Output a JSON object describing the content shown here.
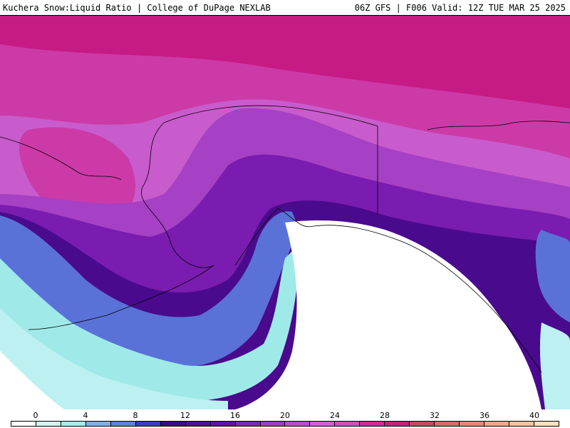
{
  "header": {
    "left": "Kuchera Snow:Liquid Ratio | College of DuPage NEXLAB",
    "right": "06Z GFS | F006 Valid: 12Z TUE MAR 25 2025"
  },
  "colorbar": {
    "tick_labels": [
      "0",
      "4",
      "8",
      "12",
      "16",
      "20",
      "24",
      "28",
      "32",
      "36",
      "40"
    ],
    "swatches": [
      "#ffffff",
      "#d4f4f4",
      "#a6ecec",
      "#7fb0e6",
      "#5c82dc",
      "#3c3cc8",
      "#3a0a8a",
      "#4c0f9a",
      "#6212aa",
      "#7a28b6",
      "#9a3cc4",
      "#b050cc",
      "#cc62d0",
      "#d050b8",
      "#d02a98",
      "#c81e7a",
      "#c84860",
      "#d86a6a",
      "#e08a78",
      "#eca88a",
      "#f4c4a0",
      "#fce0c0"
    ],
    "min": 0,
    "max": 42,
    "step": 2
  },
  "map": {
    "colors": {
      "open_ocean": "#ffffff",
      "light_cyan": "#bdf1f1",
      "cyan": "#9feae8",
      "blue": "#5a72d8",
      "dark_purple": "#4a0a8e",
      "purple": "#7a1cb0",
      "violet": "#a640c4",
      "orchid": "#c85ccc",
      "magenta": "#cc3aa8",
      "deep_magenta": "#c61a84",
      "coastline": "#000000"
    }
  }
}
